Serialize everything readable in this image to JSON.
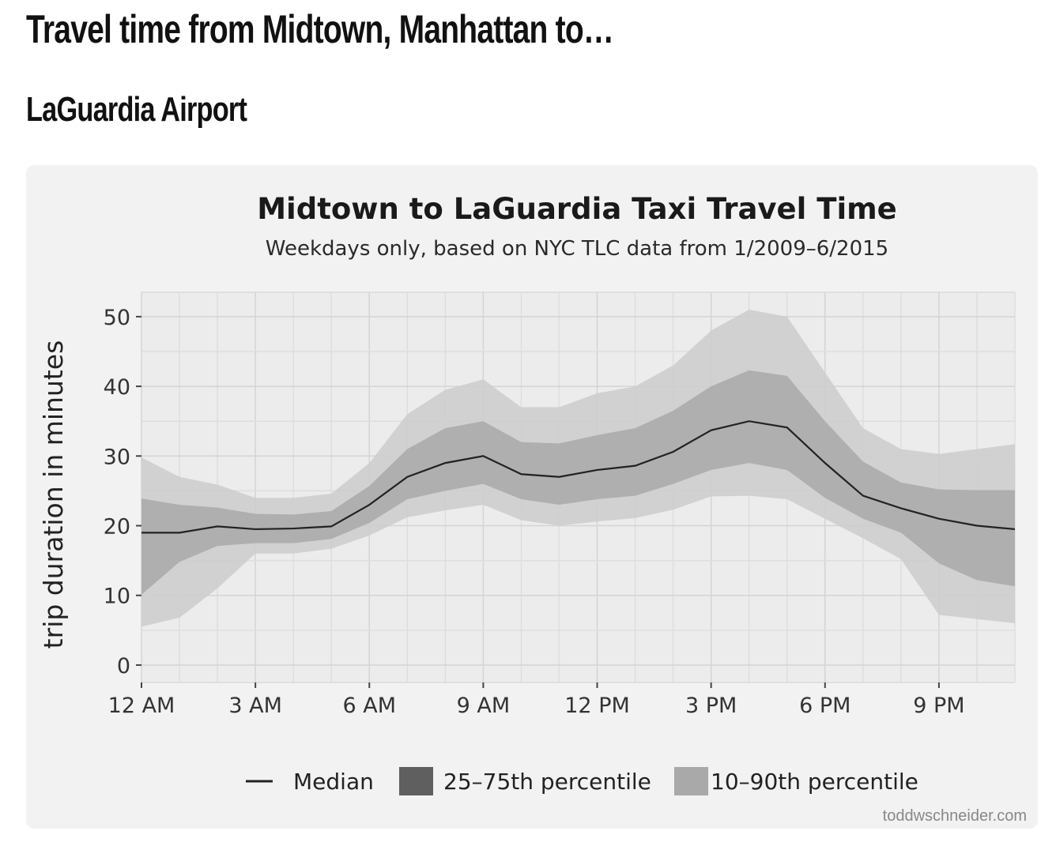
{
  "page": {
    "heading": "Travel time from Midtown, Manhattan to…",
    "section_heading": "LaGuardia Airport"
  },
  "chart_data": {
    "type": "line",
    "title": "Midtown to LaGuardia Taxi Travel Time",
    "subtitle": "Weekdays only, based on NYC TLC data from 1/2009–6/2015",
    "xlabel": "",
    "ylabel": "trip duration in minutes",
    "x": [
      0,
      1,
      2,
      3,
      4,
      5,
      6,
      7,
      8,
      9,
      10,
      11,
      12,
      13,
      14,
      15,
      16,
      17,
      18,
      19,
      20,
      21,
      22,
      23
    ],
    "xticks": [
      {
        "x": 0,
        "label": "12 AM"
      },
      {
        "x": 3,
        "label": "3 AM"
      },
      {
        "x": 6,
        "label": "6 AM"
      },
      {
        "x": 9,
        "label": "9 AM"
      },
      {
        "x": 12,
        "label": "12 PM"
      },
      {
        "x": 15,
        "label": "3 PM"
      },
      {
        "x": 18,
        "label": "6 PM"
      },
      {
        "x": 21,
        "label": "9 PM"
      }
    ],
    "yticks": [
      0,
      10,
      20,
      30,
      40,
      50
    ],
    "xlim": [
      0,
      23
    ],
    "ylim": [
      -2.5,
      53.5
    ],
    "grid": true,
    "legend_position": "bottom",
    "series": [
      {
        "name": "10–90th percentile",
        "kind": "band",
        "color": "#cccccc",
        "lower": [
          5.5,
          6.8,
          11,
          16,
          16,
          16.7,
          18.6,
          21.2,
          22.2,
          23,
          20.8,
          20,
          20.6,
          21.1,
          22.3,
          24.2,
          24.3,
          23.8,
          21,
          18.2,
          15.2,
          7.2,
          6.6,
          6
        ],
        "upper": [
          29.8,
          27,
          25.9,
          24,
          24,
          24.6,
          29,
          36,
          39.5,
          41,
          37,
          37,
          39,
          40,
          43,
          48,
          51,
          50,
          42,
          34,
          31,
          30.3,
          31,
          31.7
        ]
      },
      {
        "name": "25–75th percentile",
        "kind": "band",
        "color": "#a9a9a9",
        "lower": [
          10.1,
          14.8,
          17.1,
          17.5,
          17.5,
          18.1,
          20.4,
          23.8,
          25,
          26,
          23.8,
          23,
          23.8,
          24.3,
          26,
          28,
          29,
          28,
          24,
          21,
          19,
          14.6,
          12.2,
          11.3
        ],
        "upper": [
          23.9,
          23,
          22.6,
          21.7,
          21.6,
          22.1,
          25.7,
          31,
          34,
          35,
          32,
          31.8,
          33,
          34,
          36.5,
          40,
          42.3,
          41.5,
          35,
          29.2,
          26.2,
          25.2,
          25.1,
          25.1
        ]
      },
      {
        "name": "Median",
        "kind": "line",
        "color": "#222222",
        "values": [
          19,
          19,
          19.9,
          19.5,
          19.6,
          19.9,
          23,
          27,
          29,
          30,
          27.4,
          27,
          28,
          28.6,
          30.6,
          33.7,
          35,
          34.1,
          29,
          24.3,
          22.5,
          21,
          20,
          19.5
        ]
      }
    ],
    "legend": [
      {
        "label": "Median",
        "swatch": "line",
        "color": "#222222"
      },
      {
        "label": "25–75th percentile",
        "swatch": "box",
        "color": "#5f5f5f"
      },
      {
        "label": "10–90th percentile",
        "swatch": "box",
        "color": "#a9a9a9"
      }
    ],
    "credit": "toddwschneider.com"
  }
}
